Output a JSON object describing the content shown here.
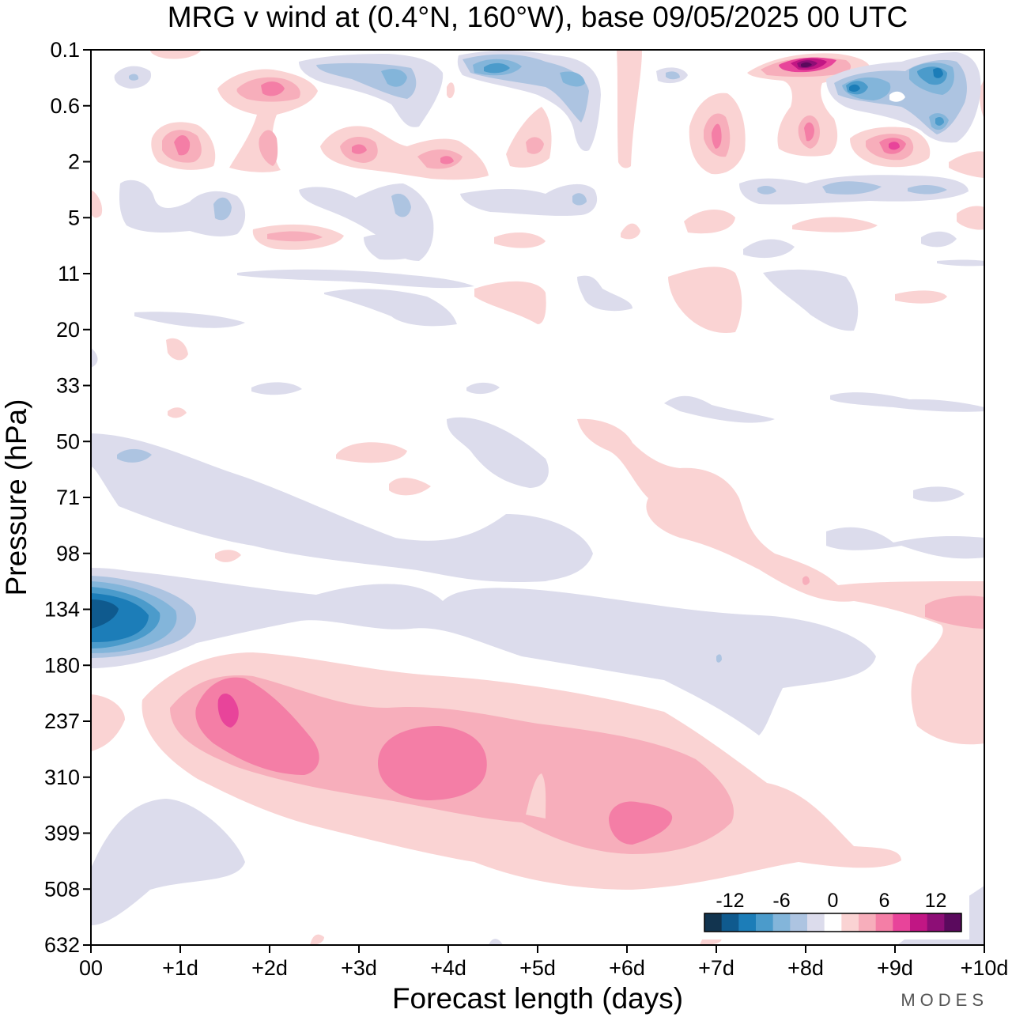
{
  "title": "MRG v wind at (0.4°N, 160°W),  base 09/05/2025  00 UTC",
  "brand": "MODES",
  "chart_data": {
    "type": "heatmap",
    "title": "MRG v wind at (0.4°N, 160°W),  base 09/05/2025  00 UTC",
    "xlabel": "Forecast length (days)",
    "ylabel": "Pressure (hPa)",
    "x_ticks": [
      "00",
      "+1d",
      "+2d",
      "+3d",
      "+4d",
      "+5d",
      "+6d",
      "+7d",
      "+8d",
      "+9d",
      "+10d"
    ],
    "y_ticks": [
      "0.1",
      "0.6",
      "2",
      "5",
      "11",
      "20",
      "33",
      "50",
      "71",
      "98",
      "134",
      "180",
      "237",
      "310",
      "399",
      "508",
      "632"
    ],
    "xlim": [
      0,
      10
    ],
    "x_unit": "days",
    "y_axis": "pressure, reversed (0.1 top to 632 bottom), log-like spacing",
    "colorbar": {
      "labels": [
        "-12",
        "-6",
        "0",
        "6",
        "12"
      ],
      "levels": [
        -14,
        -12,
        -10,
        -8,
        -6,
        -4,
        -2,
        0,
        2,
        4,
        6,
        8,
        10,
        12,
        14
      ],
      "colors": [
        "#12344f",
        "#0f5a8e",
        "#1c7db8",
        "#4b9bcb",
        "#83b5da",
        "#adc4e1",
        "#dcdcec",
        "#ffffff",
        "#fad3d3",
        "#f7aebb",
        "#f47ea6",
        "#e8449a",
        "#c11684",
        "#8d0e76",
        "#5a0a5d"
      ]
    },
    "features": [
      {
        "sign": "negative",
        "peak": -12,
        "day": 0.3,
        "pressure": 134
      },
      {
        "sign": "positive",
        "peak": 10,
        "day": 1.5,
        "pressure": 237
      },
      {
        "sign": "positive",
        "peak": 8,
        "day": 3.7,
        "pressure": 310
      },
      {
        "sign": "positive",
        "peak": 8,
        "day": 6.2,
        "pressure": 399
      },
      {
        "sign": "positive",
        "peak": 14,
        "day": 8.0,
        "pressure": 0.1
      },
      {
        "sign": "negative",
        "peak": -10,
        "day": 4.5,
        "pressure": 0.1
      },
      {
        "sign": "negative",
        "peak": -10,
        "day": 8.5,
        "pressure": 0.6
      },
      {
        "sign": "negative",
        "peak": -10,
        "day": 9.5,
        "pressure": 0.1
      },
      {
        "sign": "positive",
        "peak": 10,
        "day": 9.0,
        "pressure": 2
      },
      {
        "sign": "positive",
        "peak": 8,
        "day": 7.0,
        "pressure": 2
      },
      {
        "sign": "positive",
        "peak": 8,
        "day": 2.0,
        "pressure": 0.6
      },
      {
        "sign": "positive",
        "peak": 8,
        "day": 1.0,
        "pressure": 2
      }
    ]
  }
}
